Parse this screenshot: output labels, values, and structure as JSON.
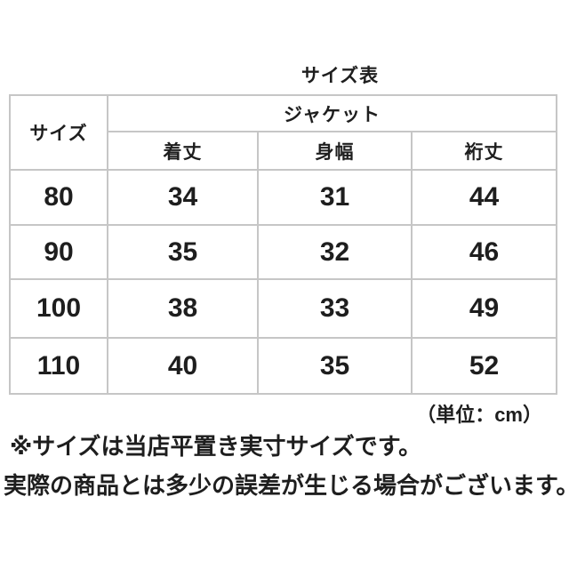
{
  "chart_data": {
    "type": "table",
    "title": "サイズ表",
    "unit_label": "（単位：cm）",
    "unit": "cm",
    "corner_header": "サイズ",
    "group_header": "ジャケット",
    "measure_headers": [
      "着丈",
      "身幅",
      "裄丈"
    ],
    "rows": [
      [
        "80",
        "34",
        "31",
        "44"
      ],
      [
        "90",
        "35",
        "32",
        "46"
      ],
      [
        "100",
        "38",
        "33",
        "49"
      ],
      [
        "110",
        "40",
        "35",
        "52"
      ]
    ],
    "notes": [
      "※サイズは当店平置き実寸サイズです。",
      "実際の商品とは多少の誤差が生じる場合がございます。"
    ]
  },
  "colors": {
    "background": "#ffffff",
    "text": "#1e1e1e",
    "table_border": "#c6c6c6"
  }
}
